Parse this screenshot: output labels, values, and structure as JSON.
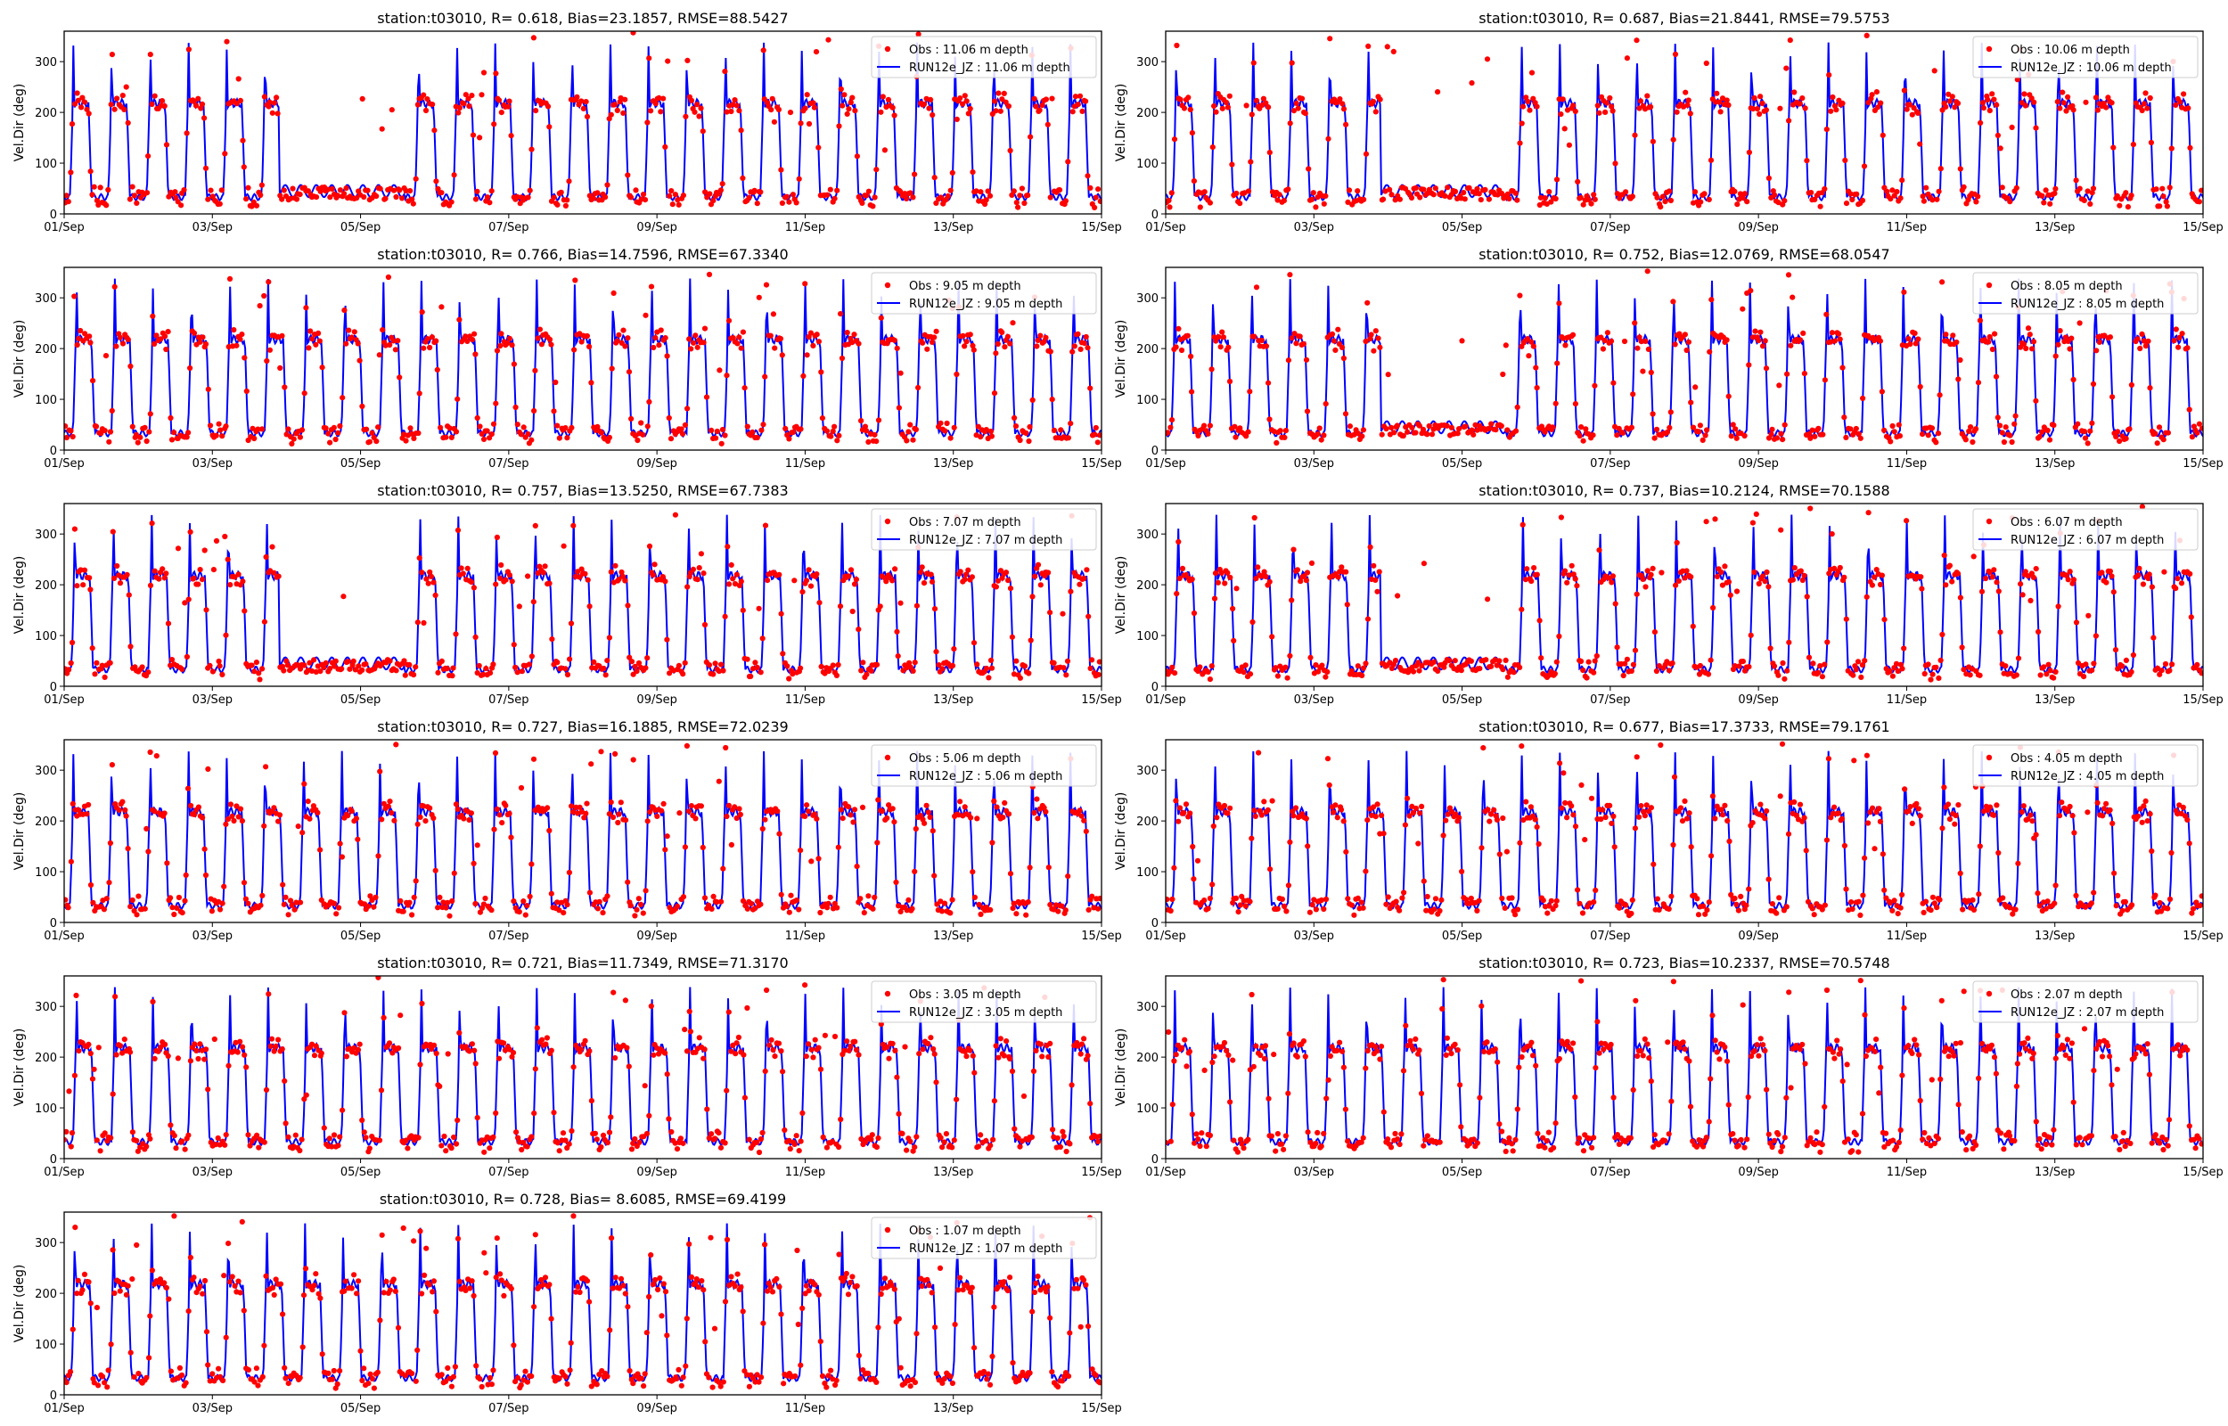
{
  "figure": {
    "type": "matplotlib-subplots",
    "grid": {
      "rows": 6,
      "cols": 2
    },
    "shared": {
      "ylabel": "Vel.Dir (deg)",
      "xticklabels": [
        "01/Sep",
        "03/Sep",
        "05/Sep",
        "07/Sep",
        "09/Sep",
        "11/Sep",
        "13/Sep",
        "15/Sep"
      ],
      "yticklabels": [
        "0",
        "100",
        "200",
        "300"
      ],
      "colors": {
        "obs": "#ff0000",
        "model": "#0000ff"
      }
    }
  },
  "chart_data": [
    {
      "type": "line",
      "title": "station:t03010, R= 0.618, Bias=23.1857, RMSE=88.5427",
      "xlabel": "",
      "ylabel": "Vel.Dir (deg)",
      "xlim": [
        "01/Sep",
        "15/Sep"
      ],
      "ylim": [
        0,
        360
      ],
      "series": [
        {
          "name": "Obs : 11.06 m depth",
          "mode": "points",
          "color": "#ff0000",
          "pattern": "alternating ebb/flood direction ~35 and ~215 deg, scattered outliers up to 360"
        },
        {
          "name": "RUN12e_JZ : 11.06 m depth",
          "mode": "line",
          "color": "#0000ff",
          "pattern": "semi-diurnal square-wave between ~35 and ~215 deg with overshoot spikes"
        }
      ],
      "legend_loc": "upper right",
      "legend": {
        "obs": "Obs : 11.06 m depth",
        "model": "RUN12e_JZ : 11.06 m depth"
      }
    },
    {
      "type": "line",
      "title": "station:t03010, R= 0.687, Bias=21.8441, RMSE=79.5753",
      "xlabel": "",
      "ylabel": "Vel.Dir (deg)",
      "xlim": [
        "01/Sep",
        "15/Sep"
      ],
      "ylim": [
        0,
        360
      ],
      "series": [
        {
          "name": "Obs : 10.06 m depth",
          "mode": "points",
          "color": "#ff0000"
        },
        {
          "name": "RUN12e_JZ : 10.06 m depth",
          "mode": "line",
          "color": "#0000ff"
        }
      ],
      "legend_loc": "upper right",
      "legend": {
        "obs": "Obs : 10.06 m depth",
        "model": "RUN12e_JZ : 10.06 m depth"
      }
    },
    {
      "type": "line",
      "title": "station:t03010, R= 0.766, Bias=14.7596, RMSE=67.3340",
      "xlabel": "",
      "ylabel": "Vel.Dir (deg)",
      "xlim": [
        "01/Sep",
        "15/Sep"
      ],
      "ylim": [
        0,
        360
      ],
      "series": [
        {
          "name": "Obs : 9.05 m depth",
          "mode": "points",
          "color": "#ff0000"
        },
        {
          "name": "RUN12e_JZ : 9.05 m depth",
          "mode": "line",
          "color": "#0000ff"
        }
      ],
      "legend_loc": "upper right",
      "legend": {
        "obs": "Obs : 9.05 m depth",
        "model": "RUN12e_JZ : 9.05 m depth"
      }
    },
    {
      "type": "line",
      "title": "station:t03010, R= 0.752, Bias=12.0769, RMSE=68.0547",
      "xlabel": "",
      "ylabel": "Vel.Dir (deg)",
      "xlim": [
        "01/Sep",
        "15/Sep"
      ],
      "ylim": [
        0,
        360
      ],
      "series": [
        {
          "name": "Obs : 8.05 m depth",
          "mode": "points",
          "color": "#ff0000"
        },
        {
          "name": "RUN12e_JZ : 8.05 m depth",
          "mode": "line",
          "color": "#0000ff"
        }
      ],
      "legend_loc": "upper right",
      "legend": {
        "obs": "Obs : 8.05 m depth",
        "model": "RUN12e_JZ : 8.05 m depth"
      }
    },
    {
      "type": "line",
      "title": "station:t03010, R= 0.757, Bias=13.5250, RMSE=67.7383",
      "xlabel": "",
      "ylabel": "Vel.Dir (deg)",
      "xlim": [
        "01/Sep",
        "15/Sep"
      ],
      "ylim": [
        0,
        360
      ],
      "series": [
        {
          "name": "Obs : 7.07 m depth",
          "mode": "points",
          "color": "#ff0000"
        },
        {
          "name": "RUN12e_JZ : 7.07 m depth",
          "mode": "line",
          "color": "#0000ff"
        }
      ],
      "legend_loc": "upper right",
      "legend": {
        "obs": "Obs : 7.07 m depth",
        "model": "RUN12e_JZ : 7.07 m depth"
      }
    },
    {
      "type": "line",
      "title": "station:t03010, R= 0.737, Bias=10.2124, RMSE=70.1588",
      "xlabel": "",
      "ylabel": "Vel.Dir (deg)",
      "xlim": [
        "01/Sep",
        "15/Sep"
      ],
      "ylim": [
        0,
        360
      ],
      "series": [
        {
          "name": "Obs : 6.07 m depth",
          "mode": "points",
          "color": "#ff0000"
        },
        {
          "name": "RUN12e_JZ : 6.07 m depth",
          "mode": "line",
          "color": "#0000ff"
        }
      ],
      "legend_loc": "upper right",
      "legend": {
        "obs": "Obs : 6.07 m depth",
        "model": "RUN12e_JZ : 6.07 m depth"
      }
    },
    {
      "type": "line",
      "title": "station:t03010, R= 0.727, Bias=16.1885, RMSE=72.0239",
      "xlabel": "",
      "ylabel": "Vel.Dir (deg)",
      "xlim": [
        "01/Sep",
        "15/Sep"
      ],
      "ylim": [
        0,
        360
      ],
      "series": [
        {
          "name": "Obs : 5.06 m depth",
          "mode": "points",
          "color": "#ff0000"
        },
        {
          "name": "RUN12e_JZ : 5.06 m depth",
          "mode": "line",
          "color": "#0000ff"
        }
      ],
      "legend_loc": "upper right",
      "legend": {
        "obs": "Obs : 5.06 m depth",
        "model": "RUN12e_JZ : 5.06 m depth"
      }
    },
    {
      "type": "line",
      "title": "station:t03010, R= 0.677, Bias=17.3733, RMSE=79.1761",
      "xlabel": "",
      "ylabel": "Vel.Dir (deg)",
      "xlim": [
        "01/Sep",
        "15/Sep"
      ],
      "ylim": [
        0,
        360
      ],
      "series": [
        {
          "name": "Obs : 4.05 m depth",
          "mode": "points",
          "color": "#ff0000"
        },
        {
          "name": "RUN12e_JZ : 4.05 m depth",
          "mode": "line",
          "color": "#0000ff"
        }
      ],
      "legend_loc": "upper right",
      "legend": {
        "obs": "Obs : 4.05 m depth",
        "model": "RUN12e_JZ : 4.05 m depth"
      }
    },
    {
      "type": "line",
      "title": "station:t03010, R= 0.721, Bias=11.7349, RMSE=71.3170",
      "xlabel": "",
      "ylabel": "Vel.Dir (deg)",
      "xlim": [
        "01/Sep",
        "15/Sep"
      ],
      "ylim": [
        0,
        360
      ],
      "series": [
        {
          "name": "Obs : 3.05 m depth",
          "mode": "points",
          "color": "#ff0000"
        },
        {
          "name": "RUN12e_JZ : 3.05 m depth",
          "mode": "line",
          "color": "#0000ff"
        }
      ],
      "legend_loc": "upper right",
      "legend": {
        "obs": "Obs : 3.05 m depth",
        "model": "RUN12e_JZ : 3.05 m depth"
      }
    },
    {
      "type": "line",
      "title": "station:t03010, R= 0.723, Bias=10.2337, RMSE=70.5748",
      "xlabel": "",
      "ylabel": "Vel.Dir (deg)",
      "xlim": [
        "01/Sep",
        "15/Sep"
      ],
      "ylim": [
        0,
        360
      ],
      "series": [
        {
          "name": "Obs : 2.07 m depth",
          "mode": "points",
          "color": "#ff0000"
        },
        {
          "name": "RUN12e_JZ : 2.07 m depth",
          "mode": "line",
          "color": "#0000ff"
        }
      ],
      "legend_loc": "upper right",
      "legend": {
        "obs": "Obs : 2.07 m depth",
        "model": "RUN12e_JZ : 2.07 m depth"
      }
    },
    {
      "type": "line",
      "title": "station:t03010, R= 0.728, Bias= 8.6085, RMSE=69.4199",
      "xlabel": "",
      "ylabel": "Vel.Dir (deg)",
      "xlim": [
        "01/Sep",
        "15/Sep"
      ],
      "ylim": [
        0,
        360
      ],
      "series": [
        {
          "name": "Obs : 1.07 m depth",
          "mode": "points",
          "color": "#ff0000"
        },
        {
          "name": "RUN12e_JZ : 1.07 m depth",
          "mode": "line",
          "color": "#0000ff"
        }
      ],
      "legend_loc": "upper right",
      "legend": {
        "obs": "Obs : 1.07 m depth",
        "model": "RUN12e_JZ : 1.07 m depth"
      }
    }
  ]
}
